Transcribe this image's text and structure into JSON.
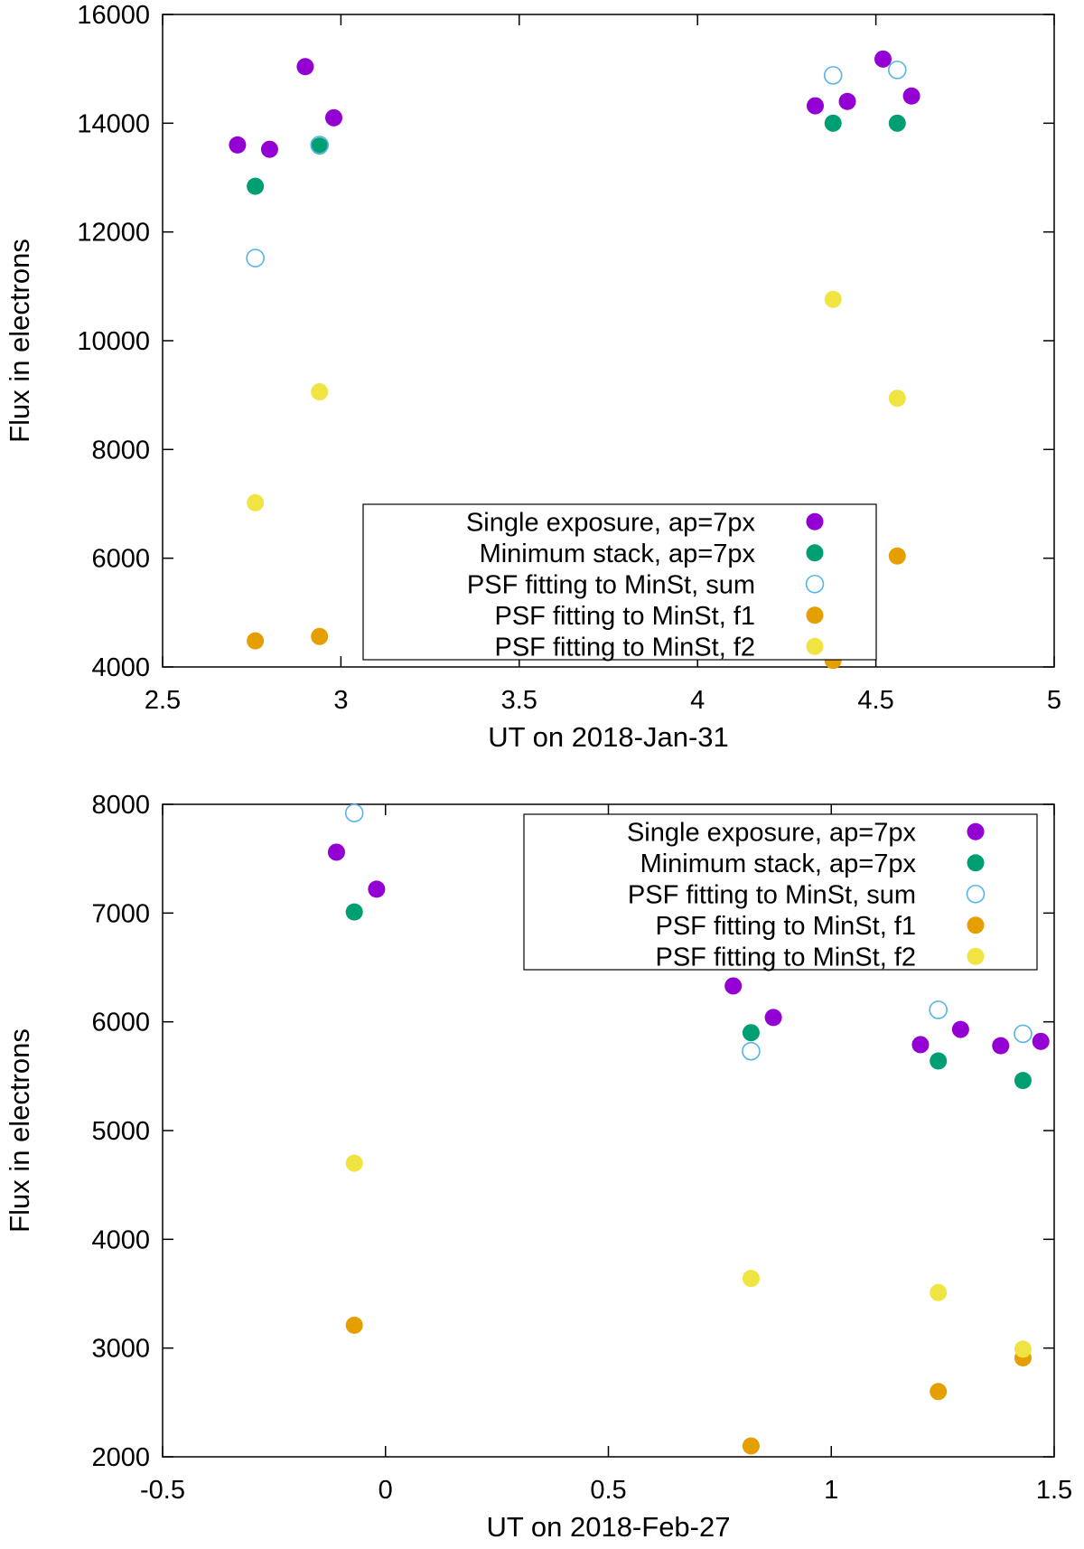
{
  "chart_data": [
    {
      "type": "scatter",
      "title": "",
      "xlabel": "UT on 2018-Jan-31",
      "ylabel": "Flux in electrons",
      "xlim": [
        2.5,
        5
      ],
      "ylim": [
        4000,
        16000
      ],
      "xticks": [
        2.5,
        3,
        3.5,
        4,
        4.5,
        5
      ],
      "xtick_labels": [
        "2.5",
        "3",
        "3.5",
        "4",
        "4.5",
        "5"
      ],
      "yticks": [
        4000,
        6000,
        8000,
        10000,
        12000,
        14000,
        16000
      ],
      "ytick_labels": [
        "4000",
        "6000",
        "8000",
        "10000",
        "12000",
        "14000",
        "16000"
      ],
      "grid": false,
      "legend_position": "bottom-center",
      "series": [
        {
          "name": "Single exposure, ap=7px",
          "color": "#9400d3",
          "marker": "filled-circle",
          "points": [
            [
              2.71,
              13600
            ],
            [
              2.8,
              13520
            ],
            [
              2.9,
              15040
            ],
            [
              2.98,
              14100
            ],
            [
              4.33,
              14320
            ],
            [
              4.42,
              14400
            ],
            [
              4.52,
              15180
            ],
            [
              4.6,
              14500
            ]
          ]
        },
        {
          "name": "Minimum stack, ap=7px",
          "color": "#009e73",
          "marker": "filled-circle",
          "points": [
            [
              2.76,
              12840
            ],
            [
              2.94,
              13580
            ],
            [
              4.38,
              14000
            ],
            [
              4.56,
              14000
            ]
          ]
        },
        {
          "name": "PSF fitting to MinSt, sum",
          "color": "#56b4e9",
          "marker": "open-circle",
          "points": [
            [
              2.76,
              11520
            ],
            [
              2.94,
              13600
            ],
            [
              4.38,
              14880
            ],
            [
              4.56,
              14980
            ]
          ]
        },
        {
          "name": "PSF fitting to MinSt, f1",
          "color": "#e69f00",
          "marker": "filled-circle",
          "points": [
            [
              2.76,
              4480
            ],
            [
              2.94,
              4560
            ],
            [
              4.38,
              4120
            ],
            [
              4.56,
              6040
            ]
          ]
        },
        {
          "name": "PSF fitting to MinSt, f2",
          "color": "#f0e442",
          "marker": "filled-circle",
          "points": [
            [
              2.76,
              7020
            ],
            [
              2.94,
              9060
            ],
            [
              4.38,
              10760
            ],
            [
              4.56,
              8940
            ]
          ]
        }
      ]
    },
    {
      "type": "scatter",
      "title": "",
      "xlabel": "UT on 2018-Feb-27",
      "ylabel": "Flux in electrons",
      "xlim": [
        -0.5,
        1.5
      ],
      "ylim": [
        2000,
        8000
      ],
      "xticks": [
        -0.5,
        0,
        0.5,
        1,
        1.5
      ],
      "xtick_labels": [
        "-0.5",
        "0",
        "0.5",
        "1",
        "1.5"
      ],
      "yticks": [
        2000,
        3000,
        4000,
        5000,
        6000,
        7000,
        8000
      ],
      "ytick_labels": [
        "2000",
        "3000",
        "4000",
        "5000",
        "6000",
        "7000",
        "8000"
      ],
      "grid": false,
      "legend_position": "top-right",
      "series": [
        {
          "name": "Single exposure, ap=7px",
          "color": "#9400d3",
          "marker": "filled-circle",
          "points": [
            [
              -0.11,
              7560
            ],
            [
              -0.02,
              7220
            ],
            [
              0.78,
              6330
            ],
            [
              0.87,
              6040
            ],
            [
              1.2,
              5790
            ],
            [
              1.29,
              5930
            ],
            [
              1.38,
              5780
            ],
            [
              1.47,
              5820
            ]
          ]
        },
        {
          "name": "Minimum stack, ap=7px",
          "color": "#009e73",
          "marker": "filled-circle",
          "points": [
            [
              -0.07,
              7010
            ],
            [
              0.82,
              5900
            ],
            [
              1.24,
              5640
            ],
            [
              1.43,
              5460
            ]
          ]
        },
        {
          "name": "PSF fitting to MinSt, sum",
          "color": "#56b4e9",
          "marker": "open-circle",
          "points": [
            [
              -0.07,
              7920
            ],
            [
              0.82,
              5730
            ],
            [
              1.24,
              6110
            ],
            [
              1.43,
              5890
            ]
          ]
        },
        {
          "name": "PSF fitting to MinSt, f1",
          "color": "#e69f00",
          "marker": "filled-circle",
          "points": [
            [
              -0.07,
              3210
            ],
            [
              0.82,
              2100
            ],
            [
              1.24,
              2600
            ],
            [
              1.43,
              2910
            ]
          ]
        },
        {
          "name": "PSF fitting to MinSt, f2",
          "color": "#f0e442",
          "marker": "filled-circle",
          "points": [
            [
              -0.07,
              4700
            ],
            [
              0.82,
              3640
            ],
            [
              1.24,
              3510
            ],
            [
              1.43,
              2990
            ]
          ]
        }
      ]
    }
  ]
}
